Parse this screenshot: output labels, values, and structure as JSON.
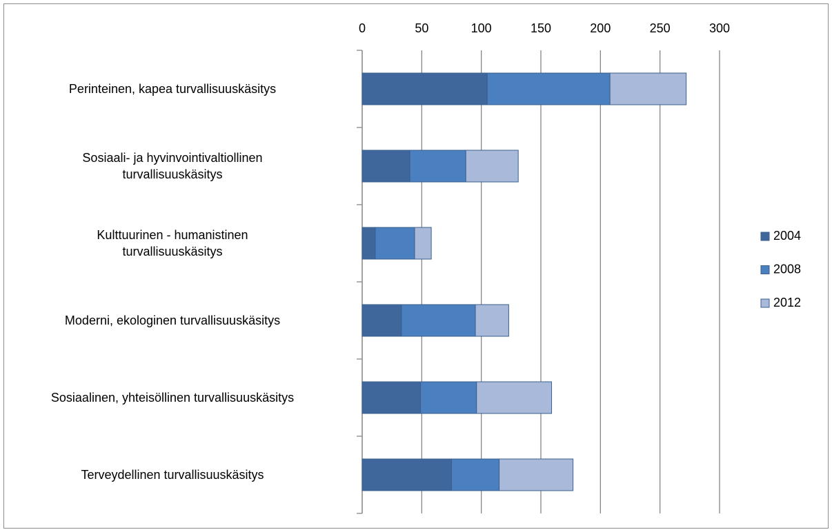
{
  "chart_data": {
    "type": "stacked-bar-horizontal",
    "categories": [
      "Perinteinen, kapea turvallisuuskäsitys",
      "Sosiaali- ja hyvinvointivaltiollinen\nturvallisuuskäsitys",
      "Kulttuurinen - humanistinen\nturvallisuuskäsitys",
      "Moderni, ekologinen turvallisuuskäsitys",
      "Sosiaalinen, yhteisöllinen turvallisuuskäsitys",
      "Terveydellinen turvallisuuskäsitys"
    ],
    "series": [
      {
        "name": "2004",
        "color": "#3f679b",
        "values": [
          105,
          40,
          11,
          33,
          49,
          75
        ]
      },
      {
        "name": "2008",
        "color": "#4a7fc0",
        "values": [
          103,
          47,
          33,
          62,
          47,
          40
        ]
      },
      {
        "name": "2012",
        "color": "#a9b9d9",
        "values": [
          64,
          44,
          14,
          28,
          63,
          62
        ]
      }
    ],
    "xlim": [
      0,
      300
    ],
    "xticks": [
      0,
      50,
      100,
      150,
      200,
      250,
      300
    ],
    "grid": true,
    "legend": "right"
  }
}
